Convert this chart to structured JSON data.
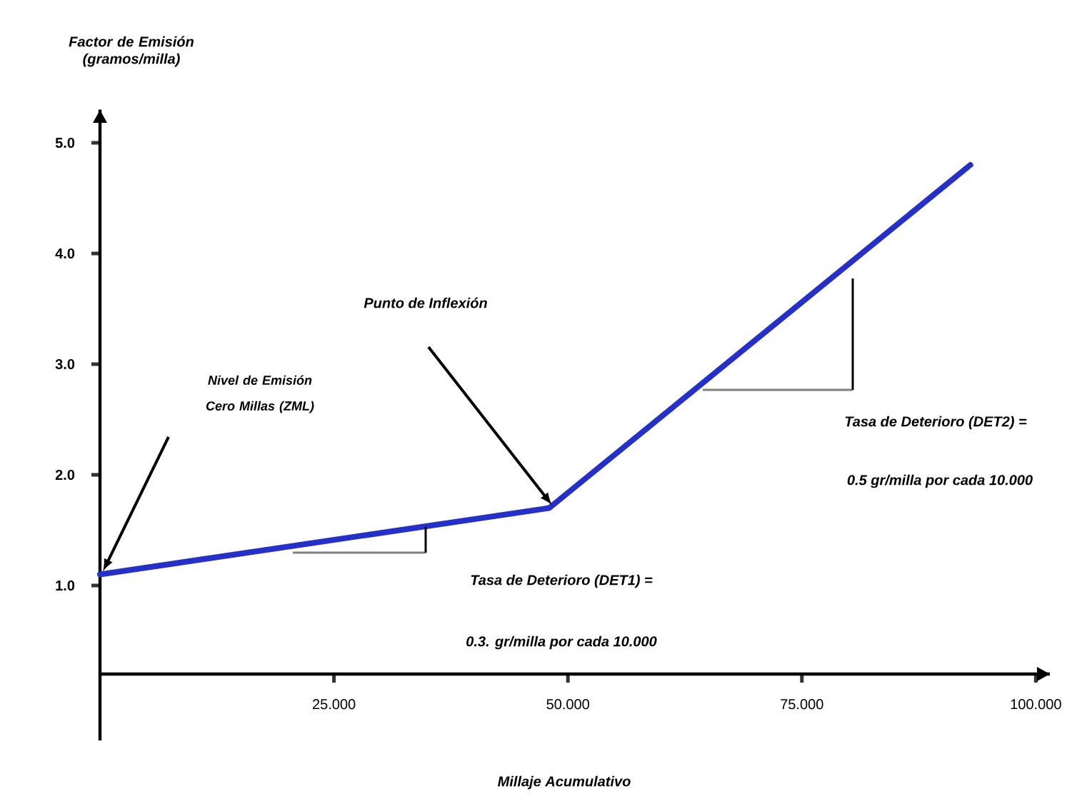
{
  "chart_data": {
    "type": "line",
    "xlabel": "Millaje Acumulativo",
    "ylabel": "Factor de Emisión (gramos/milla)",
    "x": [
      0,
      48,
      93
    ],
    "values": [
      1.1,
      1.7,
      4.8
    ],
    "color": "#2530c8",
    "xlim": [
      0,
      101.5
    ],
    "ylim": [
      -0.4,
      5.3
    ],
    "xticks": [
      {
        "value": 25,
        "label": "25.000"
      },
      {
        "value": 50,
        "label": "50.000"
      },
      {
        "value": 75,
        "label": "75.000"
      },
      {
        "value": 100,
        "label": "100.000"
      }
    ],
    "yticks": [
      {
        "value": 1,
        "label": "1.0"
      },
      {
        "value": 2,
        "label": "2.0"
      },
      {
        "value": 3,
        "label": "3.0"
      },
      {
        "value": 4,
        "label": "4.0"
      },
      {
        "value": 5,
        "label": "5.0"
      }
    ],
    "marker": "none",
    "line_style": "solid",
    "annotations": [
      "Nivel de Emisión Cero Millas (ZML)",
      "Punto de Inflexión",
      "Tasa de Deterioro (DET1) =",
      "0.3. gr/milla por cada 10.000",
      "Tasa de Deterioro (DET2) =",
      "0.5 gr/milla por cada 10.000"
    ]
  }
}
